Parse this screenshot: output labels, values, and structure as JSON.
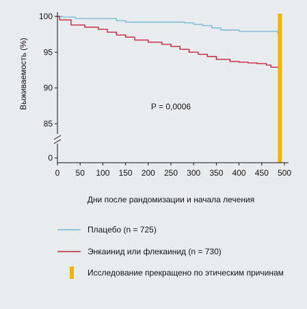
{
  "chart_data": {
    "type": "line",
    "ylabel": "Выживаемость (%)",
    "xlabel": "Дни после рандомизации и начала лечения",
    "annotation": "P = 0,0006",
    "x_ticks": [
      0,
      50,
      100,
      150,
      200,
      250,
      300,
      350,
      400,
      450,
      500
    ],
    "y_ticks": [
      85,
      90,
      95,
      100
    ],
    "y_break_tick": 0,
    "xlim": [
      0,
      500
    ],
    "ylim": [
      82,
      100
    ],
    "series": [
      {
        "name": "Плацебо (n  =  725)",
        "color": "#7ab8d9",
        "step": true,
        "x": [
          0,
          10,
          40,
          130,
          150,
          280,
          300,
          320,
          340,
          360,
          400,
          485,
          487
        ],
        "y": [
          100,
          99.9,
          99.7,
          99.4,
          99.2,
          99.1,
          98.9,
          98.7,
          98.4,
          98.1,
          97.9,
          97.7,
          97.3
        ]
      },
      {
        "name": "Энкаинид или флекаинид (n  =  730)",
        "color": "#c8213f",
        "step": true,
        "x": [
          0,
          5,
          30,
          60,
          90,
          110,
          130,
          150,
          170,
          200,
          230,
          250,
          270,
          290,
          310,
          330,
          350,
          380,
          400,
          420,
          440,
          460,
          470,
          487
        ],
        "y": [
          100,
          99.5,
          98.8,
          98.5,
          98.2,
          97.8,
          97.4,
          97.1,
          96.7,
          96.4,
          96.1,
          95.8,
          95.4,
          95.0,
          94.7,
          94.4,
          94.0,
          93.7,
          93.6,
          93.5,
          93.4,
          93.2,
          92.9,
          92.7
        ]
      }
    ],
    "stop_marker": {
      "x": 490,
      "color": "#f5b400",
      "label": "Исследование прекращено по этическим причинам"
    },
    "legend_placement": "bottom",
    "grid": false
  }
}
